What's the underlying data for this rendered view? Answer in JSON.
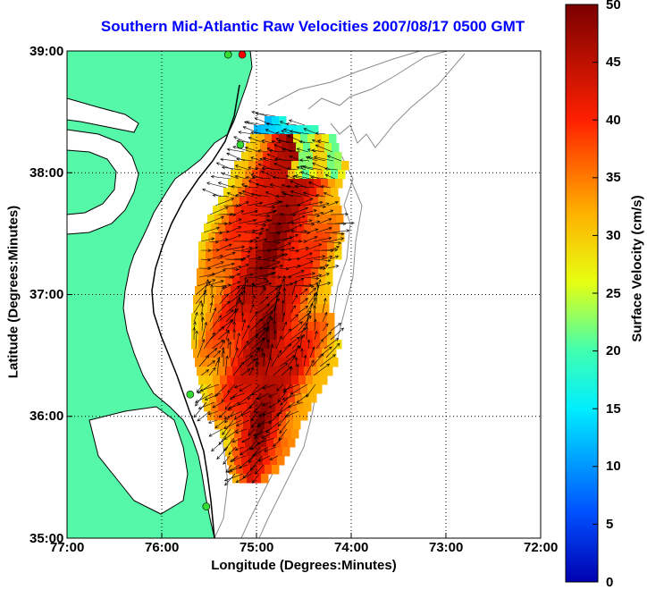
{
  "title": "Southern Mid-Atlantic Raw Velocities 2007/08/17 0500 GMT",
  "xlabel": "Longitude (Degrees:Minutes)",
  "ylabel": "Latitude (Degrees:Minutes)",
  "colorbar_label": "Surface Velocity (cm/s)",
  "colors": {
    "land": "#55f8a8",
    "coast": "#000000",
    "title": "#0000ff",
    "grid": "#000000",
    "bathymetry": "#8c8c8c"
  },
  "map": {
    "lon_range": [
      -77.0,
      -72.0
    ],
    "lat_range": [
      35.0,
      39.0
    ],
    "x_tick_values": [
      -77,
      -76,
      -75,
      -74,
      -73,
      -72
    ],
    "x_tick_labels": [
      "77:00",
      "76:00",
      "75:00",
      "74:00",
      "73:00",
      "72:00"
    ],
    "y_tick_values": [
      35,
      36,
      37,
      38,
      39
    ],
    "y_tick_labels": [
      "35:00",
      "36:00",
      "37:00",
      "38:00",
      "39:00"
    ],
    "grid": "dotted",
    "stations": [
      {
        "lon": -75.15,
        "lat": 38.97,
        "color": "#ff0000"
      },
      {
        "lon": -75.3,
        "lat": 38.97,
        "color": "#33dd33"
      },
      {
        "lon": -75.17,
        "lat": 38.23,
        "color": "#33dd33"
      },
      {
        "lon": -75.7,
        "lat": 36.18,
        "color": "#33dd33"
      },
      {
        "lon": -75.53,
        "lat": 35.26,
        "color": "#33dd33"
      }
    ]
  },
  "colorbar": {
    "range": [
      0,
      50
    ],
    "tick_values": [
      0,
      5,
      10,
      15,
      20,
      25,
      30,
      35,
      40,
      45,
      50
    ],
    "tick_labels": [
      "0",
      "5",
      "10",
      "15",
      "20",
      "25",
      "30",
      "35",
      "40",
      "45",
      "50"
    ]
  }
}
